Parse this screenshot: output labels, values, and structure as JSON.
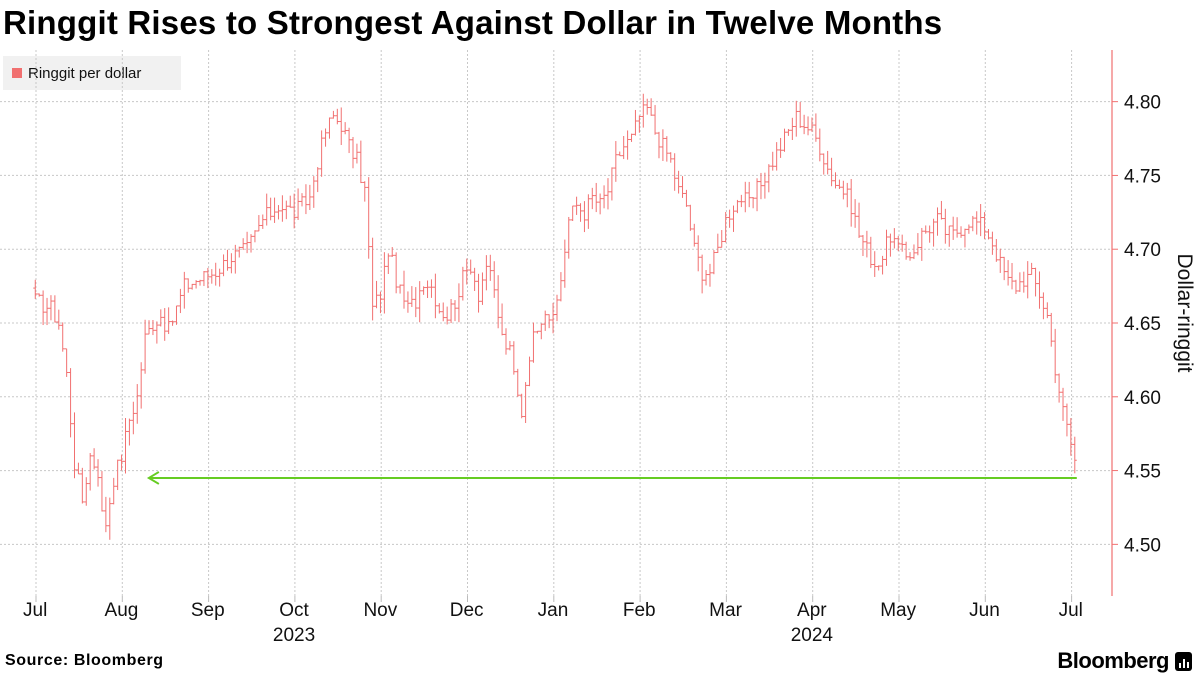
{
  "title": "Ringgit Rises to Strongest Against Dollar in Twelve Months",
  "source": "Source: Bloomberg",
  "brand": "Bloomberg",
  "brand_icon": "bloomberg-terminal-icon",
  "colors": {
    "series": "#f17070",
    "arrow": "#66cc22",
    "grid": "#c8c8c8",
    "axis": "#f17070"
  },
  "chart_data": {
    "type": "ohlc",
    "legend": [
      "Ringgit per dollar"
    ],
    "ylabel": "Dollar-ringgit",
    "ylim": [
      4.465,
      4.835
    ],
    "yticks": [
      4.5,
      4.55,
      4.6,
      4.65,
      4.7,
      4.75,
      4.8
    ],
    "ytick_labels": [
      "4.50",
      "4.55",
      "4.60",
      "4.65",
      "4.70",
      "4.75",
      "4.80"
    ],
    "month_labels": [
      "Jul",
      "Aug",
      "Sep",
      "Oct",
      "Nov",
      "Dec",
      "Jan",
      "Feb",
      "Mar",
      "Apr",
      "May",
      "Jun",
      "Jul"
    ],
    "year_labels": [
      {
        "label": "2023",
        "month_index": 3
      },
      {
        "label": "2024",
        "month_index": 9
      }
    ],
    "annotation": {
      "type": "arrow",
      "level": 4.545,
      "from_day_index": 265,
      "to_day_index": 31,
      "description": "current level, lowest in twelve months"
    },
    "days_per_month": 22,
    "start_month_offset": 9,
    "anchors": [
      [
        0,
        4.665
      ],
      [
        4,
        4.66
      ],
      [
        6,
        4.65
      ],
      [
        8,
        4.615
      ],
      [
        10,
        4.555
      ],
      [
        12,
        4.53
      ],
      [
        14,
        4.56
      ],
      [
        16,
        4.55
      ],
      [
        17,
        4.52
      ],
      [
        18,
        4.515
      ],
      [
        20,
        4.545
      ],
      [
        22,
        4.56
      ],
      [
        24,
        4.585
      ],
      [
        26,
        4.6
      ],
      [
        28,
        4.64
      ],
      [
        30,
        4.65
      ],
      [
        32,
        4.655
      ],
      [
        34,
        4.645
      ],
      [
        36,
        4.66
      ],
      [
        38,
        4.675
      ],
      [
        42,
        4.68
      ],
      [
        46,
        4.685
      ],
      [
        50,
        4.695
      ],
      [
        54,
        4.7
      ],
      [
        58,
        4.72
      ],
      [
        62,
        4.73
      ],
      [
        66,
        4.725
      ],
      [
        70,
        4.735
      ],
      [
        72,
        4.76
      ],
      [
        74,
        4.78
      ],
      [
        76,
        4.79
      ],
      [
        78,
        4.785
      ],
      [
        80,
        4.77
      ],
      [
        82,
        4.76
      ],
      [
        84,
        4.74
      ],
      [
        85,
        4.7
      ],
      [
        86,
        4.66
      ],
      [
        88,
        4.67
      ],
      [
        90,
        4.7
      ],
      [
        91,
        4.69
      ],
      [
        93,
        4.67
      ],
      [
        95,
        4.66
      ],
      [
        97,
        4.665
      ],
      [
        99,
        4.68
      ],
      [
        101,
        4.675
      ],
      [
        103,
        4.66
      ],
      [
        105,
        4.655
      ],
      [
        107,
        4.665
      ],
      [
        109,
        4.68
      ],
      [
        111,
        4.69
      ],
      [
        113,
        4.67
      ],
      [
        115,
        4.69
      ],
      [
        117,
        4.67
      ],
      [
        119,
        4.64
      ],
      [
        121,
        4.63
      ],
      [
        123,
        4.6
      ],
      [
        124,
        4.59
      ],
      [
        126,
        4.63
      ],
      [
        128,
        4.65
      ],
      [
        130,
        4.66
      ],
      [
        132,
        4.65
      ],
      [
        134,
        4.68
      ],
      [
        136,
        4.72
      ],
      [
        138,
        4.73
      ],
      [
        140,
        4.725
      ],
      [
        142,
        4.735
      ],
      [
        144,
        4.73
      ],
      [
        146,
        4.74
      ],
      [
        148,
        4.76
      ],
      [
        150,
        4.77
      ],
      [
        152,
        4.775
      ],
      [
        154,
        4.79
      ],
      [
        156,
        4.795
      ],
      [
        158,
        4.78
      ],
      [
        160,
        4.77
      ],
      [
        162,
        4.76
      ],
      [
        164,
        4.74
      ],
      [
        166,
        4.73
      ],
      [
        168,
        4.7
      ],
      [
        170,
        4.685
      ],
      [
        172,
        4.685
      ],
      [
        174,
        4.7
      ],
      [
        176,
        4.72
      ],
      [
        178,
        4.73
      ],
      [
        180,
        4.735
      ],
      [
        182,
        4.73
      ],
      [
        184,
        4.74
      ],
      [
        186,
        4.75
      ],
      [
        188,
        4.76
      ],
      [
        190,
        4.77
      ],
      [
        192,
        4.78
      ],
      [
        194,
        4.79
      ],
      [
        196,
        4.785
      ],
      [
        198,
        4.78
      ],
      [
        200,
        4.77
      ],
      [
        202,
        4.755
      ],
      [
        204,
        4.745
      ],
      [
        206,
        4.74
      ],
      [
        208,
        4.73
      ],
      [
        210,
        4.71
      ],
      [
        212,
        4.7
      ],
      [
        214,
        4.69
      ],
      [
        216,
        4.695
      ],
      [
        218,
        4.71
      ],
      [
        220,
        4.7
      ],
      [
        222,
        4.695
      ],
      [
        224,
        4.7
      ],
      [
        226,
        4.71
      ],
      [
        228,
        4.715
      ],
      [
        230,
        4.72
      ],
      [
        232,
        4.712
      ],
      [
        234,
        4.71
      ],
      [
        236,
        4.715
      ],
      [
        238,
        4.72
      ],
      [
        240,
        4.718
      ],
      [
        242,
        4.715
      ],
      [
        244,
        4.705
      ],
      [
        246,
        4.69
      ],
      [
        248,
        4.678
      ],
      [
        250,
        4.675
      ],
      [
        252,
        4.68
      ],
      [
        254,
        4.682
      ],
      [
        256,
        4.67
      ],
      [
        258,
        4.655
      ],
      [
        260,
        4.62
      ],
      [
        262,
        4.59
      ],
      [
        264,
        4.568
      ],
      [
        265,
        4.557
      ]
    ],
    "noise_seed": 17
  }
}
